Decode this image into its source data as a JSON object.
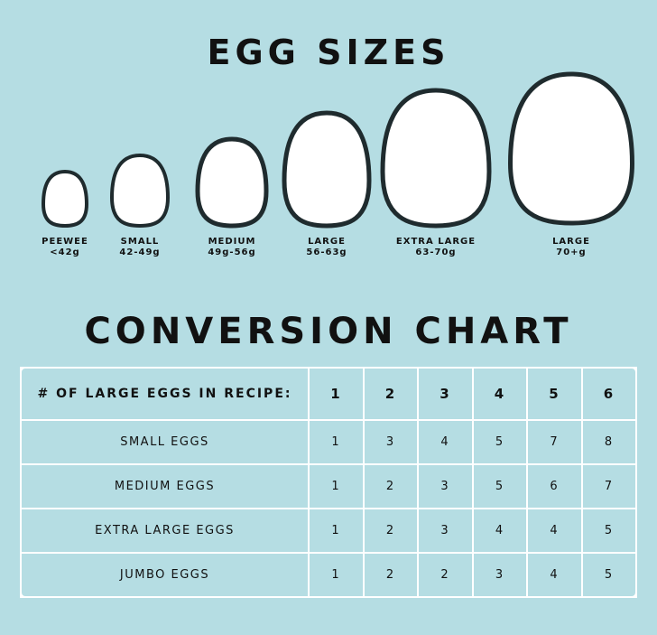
{
  "egg_sizes": {
    "title": "EGG SIZES",
    "eggs": [
      {
        "name": "PEEWEE",
        "range": "<42g"
      },
      {
        "name": "SMALL",
        "range": "42-49g"
      },
      {
        "name": "MEDIUM",
        "range": "49g-56g"
      },
      {
        "name": "LARGE",
        "range": "56-63g"
      },
      {
        "name": "EXTRA LARGE",
        "range": "63-70g"
      },
      {
        "name": "LARGE",
        "range": "70+g"
      }
    ]
  },
  "conversion": {
    "title": "CONVERSION CHART",
    "header": [
      "# OF LARGE EGGS IN RECIPE:",
      "1",
      "2",
      "3",
      "4",
      "5",
      "6"
    ],
    "rows": [
      [
        "SMALL EGGS",
        "1",
        "3",
        "4",
        "5",
        "7",
        "8"
      ],
      [
        "MEDIUM EGGS",
        "1",
        "2",
        "3",
        "5",
        "6",
        "7"
      ],
      [
        "EXTRA LARGE EGGS",
        "1",
        "2",
        "3",
        "4",
        "4",
        "5"
      ],
      [
        "JUMBO EGGS",
        "1",
        "2",
        "2",
        "3",
        "4",
        "5"
      ]
    ]
  },
  "colors": {
    "background": "#b5dde3",
    "egg_fill": "#ffffff",
    "egg_outline": "#1f2b2e",
    "grid": "#ffffff"
  }
}
